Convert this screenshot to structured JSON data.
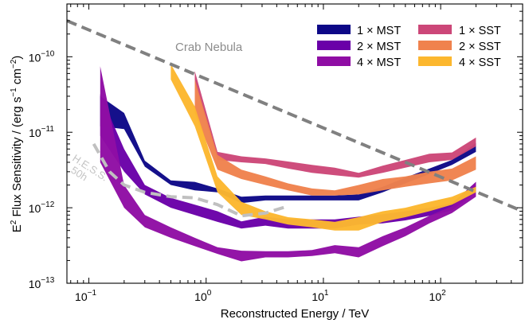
{
  "chart_data": {
    "type": "area",
    "xscale": "log",
    "yscale": "log",
    "xlim": [
      0.065,
      500
    ],
    "ylim": [
      1e-13,
      5e-10
    ],
    "xlabel": "Reconstructed Energy / TeV",
    "ylabel": {
      "base": "E",
      "sup1": "2",
      "mid": " Flux Sensitivity / (erg s",
      "sup2": "−1",
      "mid2": " cm",
      "sup3": "−2",
      "end": ")"
    },
    "xticks": [
      {
        "value": 0.1,
        "base": "10",
        "exp": "−1"
      },
      {
        "value": 1,
        "base": "10",
        "exp": "0"
      },
      {
        "value": 10,
        "base": "10",
        "exp": "1"
      },
      {
        "value": 100,
        "base": "10",
        "exp": "2"
      }
    ],
    "yticks": [
      {
        "value": 1e-13,
        "base": "10",
        "exp": "−13"
      },
      {
        "value": 1e-12,
        "base": "10",
        "exp": "−12"
      },
      {
        "value": 1e-11,
        "base": "10",
        "exp": "−11"
      },
      {
        "value": 1e-10,
        "base": "10",
        "exp": "−10"
      }
    ],
    "series": [
      {
        "name": "1×MST",
        "color": "#0d0887",
        "x": [
          0.125,
          0.2,
          0.3,
          0.5,
          0.8,
          1.25,
          2,
          3.2,
          5,
          8,
          12.5,
          20,
          32,
          50,
          80,
          125,
          200
        ],
        "lower": [
          1.2e-11,
          1.1e-11,
          3.5e-12,
          2e-12,
          1.7e-12,
          1.6e-12,
          1.15e-12,
          1.25e-12,
          1.25e-12,
          1.25e-12,
          1.25e-12,
          1.25e-12,
          1.6e-12,
          2.1e-12,
          2.8e-12,
          3.7e-12,
          5.5e-12
        ],
        "upper": [
          3e-11,
          1.8e-11,
          4.2e-12,
          2.3e-12,
          2.2e-12,
          1.8e-12,
          1.4e-12,
          1.45e-12,
          1.45e-12,
          1.45e-12,
          1.45e-12,
          1.5e-12,
          1.9e-12,
          2.5e-12,
          3.3e-12,
          4.3e-12,
          7.2e-12
        ]
      },
      {
        "name": "2×MST",
        "color": "#6a00a8",
        "x": [
          0.125,
          0.2,
          0.3,
          0.5,
          0.8,
          1.25,
          2,
          3.2,
          5,
          8,
          12.5,
          20,
          32,
          50,
          80,
          125,
          200
        ],
        "lower": [
          9e-12,
          3e-12,
          1.5e-12,
          1e-12,
          8e-13,
          6.5e-13,
          5.3e-13,
          5.8e-13,
          5.3e-13,
          5.3e-13,
          5.3e-13,
          6e-13,
          6.2e-13,
          6.8e-13,
          7.8e-13,
          9.2e-13,
          1.6e-12
        ],
        "upper": [
          3.2e-11,
          6e-12,
          2e-12,
          1.35e-12,
          1.1e-12,
          9e-13,
          6.6e-13,
          7.6e-13,
          7e-13,
          7e-13,
          7e-13,
          7.6e-13,
          8.2e-13,
          9e-13,
          1e-12,
          1.15e-12,
          2.2e-12
        ]
      },
      {
        "name": "4×MST",
        "color": "#8f0da4",
        "x": [
          0.125,
          0.2,
          0.3,
          0.5,
          0.8,
          1.25,
          2,
          3.2,
          5,
          8,
          12.5,
          20,
          32,
          50,
          80,
          125,
          200
        ],
        "lower": [
          4e-12,
          1e-12,
          5.5e-13,
          4e-13,
          3.1e-13,
          2.45e-13,
          1.95e-13,
          2.2e-13,
          2.2e-13,
          2.3e-13,
          2.5e-13,
          2.2e-13,
          3.1e-13,
          4.2e-13,
          6.2e-13,
          8.5e-13,
          1.4e-12
        ],
        "upper": [
          7.5e-11,
          2e-12,
          8e-13,
          5.5e-13,
          4e-13,
          3e-13,
          2.7e-13,
          2.65e-13,
          2.65e-13,
          2.75e-13,
          3.2e-13,
          3e-13,
          4.2e-13,
          5.5e-13,
          7.8e-13,
          1.05e-12,
          2.2e-12
        ]
      },
      {
        "name": "1×SST",
        "color": "#cc4778",
        "x": [
          0.8,
          1.25,
          2,
          3.2,
          5,
          8,
          12.5,
          20,
          32,
          50,
          80,
          125,
          200
        ],
        "lower": [
          4.5e-11,
          4.3e-12,
          4e-12,
          3.8e-12,
          3.3e-12,
          2.9e-12,
          2.7e-12,
          2.5e-12,
          2.9e-12,
          3.4e-12,
          4e-12,
          4.3e-12,
          6.5e-12
        ],
        "upper": [
          6.5e-11,
          5.5e-12,
          4.8e-12,
          4.5e-12,
          4.1e-12,
          3.7e-12,
          3.4e-12,
          2.9e-12,
          3.6e-12,
          4.3e-12,
          5.2e-12,
          5.4e-12,
          8.5e-12
        ]
      },
      {
        "name": "2×SST",
        "color": "#f0824d",
        "x": [
          0.8,
          1.25,
          2,
          3.2,
          5,
          8,
          12.5,
          20,
          32,
          50,
          80,
          125,
          200
        ],
        "lower": [
          1.8e-11,
          3.2e-12,
          2.4e-12,
          2e-12,
          1.7e-12,
          1.45e-12,
          1.45e-12,
          1.5e-12,
          1.7e-12,
          1.9e-12,
          2.1e-12,
          2.3e-12,
          3.2e-12
        ],
        "upper": [
          5e-11,
          5e-12,
          3.2e-12,
          2.6e-12,
          2.1e-12,
          1.8e-12,
          1.7e-12,
          2e-12,
          2.4e-12,
          2.6e-12,
          3e-12,
          3.3e-12,
          4.8e-12
        ]
      },
      {
        "name": "4×SST",
        "color": "#fcb72e",
        "x": [
          0.5,
          0.8,
          1.25,
          2,
          3.2,
          5,
          8,
          12.5,
          20,
          32,
          50,
          80,
          125,
          200
        ],
        "lower": [
          5e-11,
          1.2e-11,
          1.6e-12,
          8e-13,
          7e-13,
          6e-13,
          5.5e-13,
          5e-13,
          5e-13,
          6.5e-13,
          7.5e-13,
          9e-13,
          1.1e-12,
          1.6e-12
        ],
        "upper": [
          8e-11,
          2.2e-11,
          2.6e-12,
          1.2e-12,
          9e-13,
          7.5e-13,
          7e-13,
          6.5e-13,
          7.5e-13,
          9e-13,
          1e-12,
          1.2e-12,
          1.4e-12,
          1.9e-12
        ]
      }
    ],
    "reference_lines": [
      {
        "name": "Crab Nebula",
        "label": "Crab Nebula",
        "color": "#808080",
        "style": "dashed",
        "x": [
          0.065,
          500
        ],
        "y": [
          3e-10,
          9e-13
        ]
      },
      {
        "name": "H.E.S.S. 50h",
        "label_line1": "H.E.S.S.",
        "label_line2": "50h",
        "color": "#c0c0c0",
        "style": "dashed",
        "x": [
          0.11,
          0.15,
          0.2,
          0.3,
          0.5,
          0.8,
          1.25,
          2,
          3.2,
          5
        ],
        "y": [
          7e-12,
          3e-12,
          2e-12,
          1.6e-12,
          1.4e-12,
          1.35e-12,
          1.1e-12,
          7.8e-13,
          8.5e-13,
          1.05e-12
        ]
      }
    ],
    "legend": {
      "placement": "top-right",
      "columns": 2,
      "entries": [
        {
          "label": "1 × MST",
          "color": "#0d0887"
        },
        {
          "label": "2 × MST",
          "color": "#6a00a8"
        },
        {
          "label": "4 × MST",
          "color": "#8f0da4"
        },
        {
          "label": "1 × SST",
          "color": "#cc4778"
        },
        {
          "label": "2 × SST",
          "color": "#f0824d"
        },
        {
          "label": "4 × SST",
          "color": "#fcb72e"
        }
      ]
    }
  }
}
